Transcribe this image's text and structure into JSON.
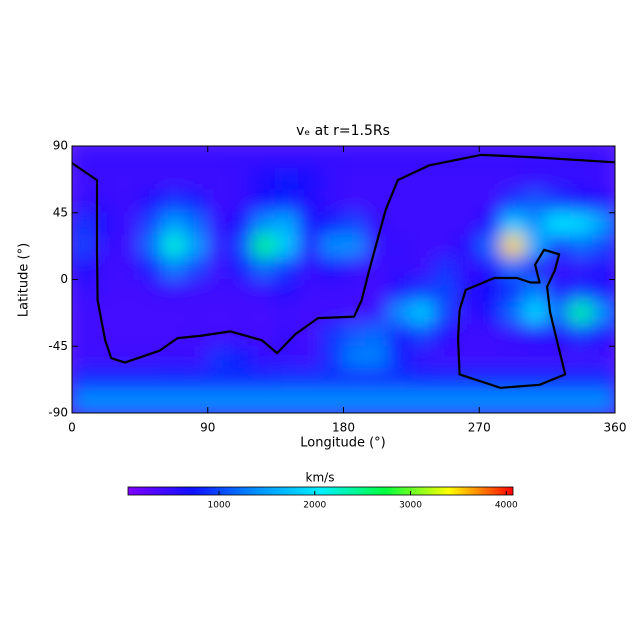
{
  "chart_data": {
    "type": "heatmap",
    "title": "vₑ at r=1.5Rs",
    "x_label": "Longitude (°)",
    "y_label": "Latitude (°)",
    "x": [
      7.5,
      22.5,
      37.5,
      52.5,
      67.5,
      82.5,
      97.5,
      112.5,
      127.5,
      142.5,
      157.5,
      172.5,
      187.5,
      202.5,
      217.5,
      232.5,
      247.5,
      262.5,
      277.5,
      292.5,
      307.5,
      322.5,
      337.5,
      352.5
    ],
    "y": [
      82.5,
      67.5,
      52.5,
      37.5,
      22.5,
      7.5,
      -7.5,
      -22.5,
      -37.5,
      -52.5,
      -67.5,
      -82.5
    ],
    "values": [
      [
        500,
        500,
        500,
        500,
        500,
        500,
        500,
        500,
        500,
        500,
        500,
        500,
        500,
        500,
        500,
        500,
        500,
        500,
        500,
        500,
        500,
        500,
        500,
        500
      ],
      [
        450,
        450,
        450,
        450,
        450,
        450,
        450,
        500,
        650,
        750,
        700,
        500,
        450,
        450,
        450,
        450,
        450,
        450,
        450,
        450,
        500,
        500,
        500,
        450
      ],
      [
        500,
        500,
        450,
        650,
        900,
        800,
        450,
        500,
        700,
        800,
        600,
        500,
        450,
        450,
        450,
        450,
        450,
        450,
        450,
        900,
        1100,
        900,
        700,
        600
      ],
      [
        900,
        600,
        450,
        1000,
        1500,
        1200,
        500,
        700,
        1400,
        1600,
        700,
        800,
        1000,
        500,
        450,
        450,
        450,
        450,
        700,
        1800,
        1400,
        2000,
        1900,
        1500
      ],
      [
        1000,
        500,
        450,
        1200,
        2200,
        1500,
        500,
        1000,
        2500,
        1800,
        600,
        1400,
        1400,
        500,
        500,
        450,
        450,
        600,
        1200,
        3500,
        1600,
        900,
        1200,
        1000
      ],
      [
        700,
        450,
        450,
        800,
        1300,
        1000,
        450,
        800,
        1200,
        900,
        500,
        700,
        500,
        450,
        500,
        450,
        900,
        500,
        600,
        1200,
        600,
        500,
        500,
        600
      ],
      [
        500,
        450,
        400,
        450,
        500,
        450,
        450,
        450,
        500,
        600,
        450,
        450,
        450,
        400,
        650,
        900,
        1000,
        600,
        700,
        900,
        1300,
        600,
        900,
        700
      ],
      [
        450,
        400,
        400,
        400,
        400,
        400,
        400,
        400,
        400,
        450,
        400,
        450,
        400,
        500,
        1400,
        1800,
        1000,
        500,
        700,
        1200,
        1900,
        1200,
        2400,
        1400
      ],
      [
        450,
        400,
        400,
        400,
        400,
        450,
        400,
        450,
        400,
        500,
        400,
        900,
        1100,
        1200,
        700,
        1000,
        600,
        450,
        450,
        500,
        600,
        600,
        900,
        700
      ],
      [
        450,
        450,
        450,
        450,
        500,
        450,
        900,
        800,
        500,
        500,
        450,
        900,
        1300,
        1300,
        800,
        500,
        450,
        450,
        450,
        450,
        450,
        450,
        450,
        450
      ],
      [
        850,
        850,
        850,
        850,
        850,
        850,
        850,
        850,
        850,
        900,
        900,
        900,
        900,
        900,
        900,
        850,
        850,
        850,
        850,
        850,
        850,
        850,
        850,
        850
      ],
      [
        1400,
        1400,
        1400,
        1400,
        1400,
        1400,
        1400,
        1400,
        1400,
        1400,
        1400,
        1400,
        1400,
        1400,
        1400,
        1400,
        1400,
        1400,
        1400,
        1400,
        1400,
        1400,
        1400,
        1400
      ]
    ],
    "xlim": [
      0,
      360
    ],
    "ylim": [
      -90,
      90
    ],
    "xticks": [
      0,
      90,
      180,
      270,
      360
    ],
    "yticks": [
      -90,
      -45,
      0,
      45,
      90
    ],
    "zlim": [
      50,
      4070
    ],
    "zticks": [
      1000,
      2000,
      3000,
      4000
    ],
    "colorbar_label": "km/s",
    "colorscale": [
      "#7f00ff",
      "#1010ff",
      "#0090ff",
      "#00f0ff",
      "#00ff40",
      "#ffff00",
      "#ff0000"
    ],
    "contour_color": "#000000",
    "contours": [
      {
        "x": [
          0,
          16.6,
          16.6,
          17,
          22,
          26,
          35,
          58,
          70,
          85,
          105,
          126,
          136,
          148,
          163,
          187,
          192,
          197,
          208,
          216,
          237,
          271,
          304,
          360
        ],
        "y": [
          78.5,
          67,
          20,
          -14,
          -41,
          -53,
          -56,
          -48,
          -39.5,
          -38,
          -35,
          -41,
          -49.6,
          -37,
          -26,
          -25,
          -14,
          6,
          47,
          67,
          77,
          84,
          82.5,
          79
        ]
      },
      {
        "x": [
          257,
          261,
          280,
          295,
          304,
          310,
          307,
          313,
          323,
          320,
          315,
          317,
          320,
          327,
          310,
          284,
          257,
          256,
          257
        ],
        "y": [
          -20.6,
          -7,
          1,
          1,
          -2,
          -2,
          10,
          20,
          17,
          6,
          -5,
          -22,
          -35,
          -64,
          -71,
          -73,
          -64,
          -40,
          -20.6
        ]
      }
    ]
  }
}
